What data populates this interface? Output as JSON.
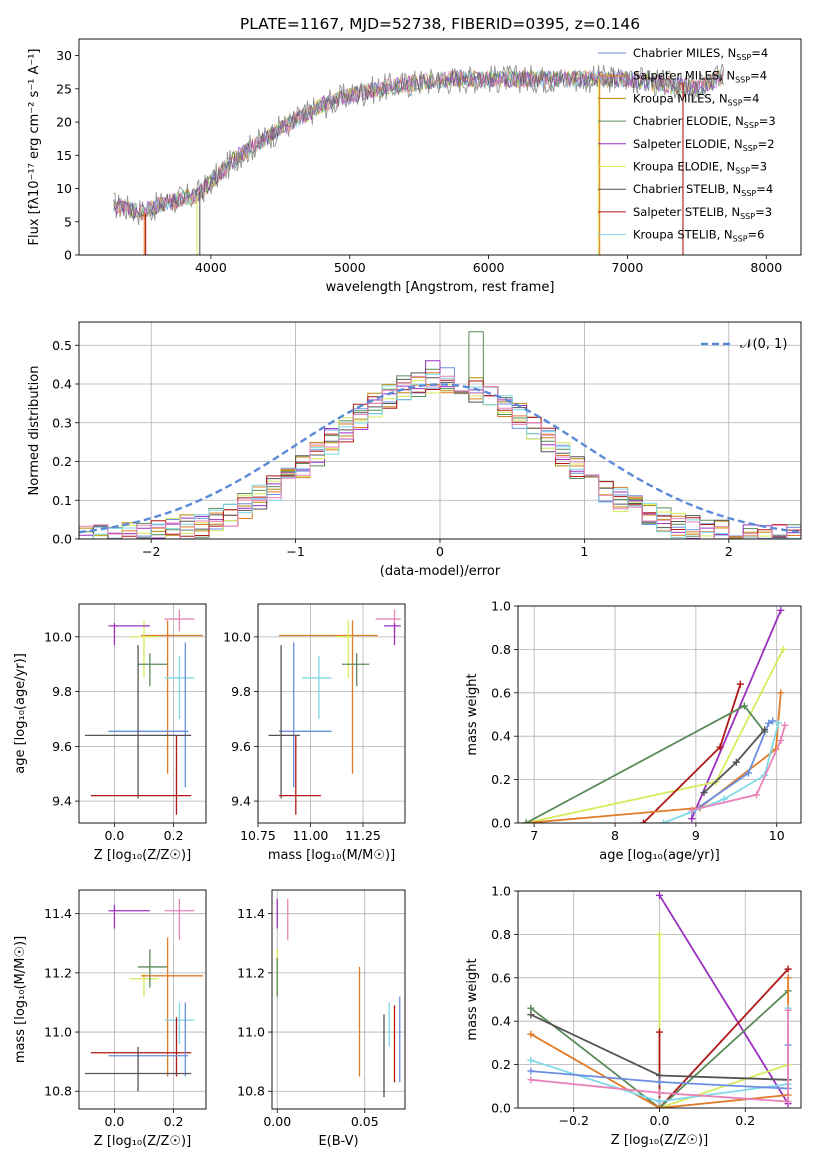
{
  "figure_title": "PLATE=1167, MJD=52738, FIBERID=0395, z=0.146",
  "colors": {
    "Chabrier MILES": "#6a8fe0",
    "Salpeter MILES": "#e07b28",
    "Kroupa MILES": "#b8860b",
    "Chabrier ELODIE": "#5a8a5a",
    "Salpeter ELODIE": "#9b30c0",
    "Kroupa ELODIE": "#d4ec5c",
    "Chabrier STELIB": "#555555",
    "Salpeter STELIB": "#b01818",
    "Kroupa STELIB": "#7fd8e8",
    "pink": "#e884b8",
    "spectrum": "#808080",
    "gaussian": "#5b8ad8"
  },
  "chart_data": [
    {
      "id": "spectrum",
      "type": "line",
      "xlabel": "wavelength [Angstrom, rest frame]",
      "ylabel": "Flux [fλ10⁻¹⁷ erg cm⁻² s⁻¹ A⁻¹]",
      "xlim": [
        3050,
        8250
      ],
      "ylim": [
        0,
        32.5
      ],
      "xticks": [
        4000,
        5000,
        6000,
        7000,
        8000
      ],
      "yticks": [
        0,
        5,
        10,
        15,
        20,
        25,
        30
      ],
      "legend_position": "right",
      "legend": [
        {
          "imf": "Chabrier",
          "lib": "MILES",
          "n": 4
        },
        {
          "imf": "Salpeter",
          "lib": "MILES",
          "n": 4
        },
        {
          "imf": "Kroupa",
          "lib": "MILES",
          "n": 4
        },
        {
          "imf": "Chabrier",
          "lib": "ELODIE",
          "n": 3
        },
        {
          "imf": "Salpeter",
          "lib": "ELODIE",
          "n": 2
        },
        {
          "imf": "Kroupa",
          "lib": "ELODIE",
          "n": 3
        },
        {
          "imf": "Chabrier",
          "lib": "STELIB",
          "n": 4
        },
        {
          "imf": "Salpeter",
          "lib": "STELIB",
          "n": 3
        },
        {
          "imf": "Kroupa",
          "lib": "STELIB",
          "n": 6
        }
      ],
      "continuum": [
        [
          3300,
          7.5
        ],
        [
          3500,
          6.5
        ],
        [
          3700,
          8
        ],
        [
          3900,
          9
        ],
        [
          4000,
          11
        ],
        [
          4200,
          15
        ],
        [
          4500,
          19
        ],
        [
          4800,
          22.5
        ],
        [
          5000,
          24
        ],
        [
          5200,
          25
        ],
        [
          5500,
          26
        ],
        [
          5800,
          26.5
        ],
        [
          6000,
          26.5
        ],
        [
          6500,
          26.5
        ],
        [
          7000,
          26.5
        ],
        [
          7500,
          25
        ],
        [
          7700,
          27
        ]
      ]
    },
    {
      "id": "residuals",
      "type": "histogram",
      "xlabel": "(data-model)/error",
      "ylabel": "Normed distribution",
      "xlim": [
        -2.5,
        2.5
      ],
      "ylim": [
        0,
        0.56
      ],
      "xticks": [
        -2,
        -1,
        0,
        1,
        2
      ],
      "yticks": [
        0.0,
        0.1,
        0.2,
        0.3,
        0.4,
        0.5
      ],
      "grid": true,
      "legend_position": "top-right",
      "gaussian_label": "𝒩(0, 1)"
    },
    {
      "id": "age-Z",
      "type": "errorbar",
      "xlabel": "Z [log₁₀(Z/Z☉)]",
      "ylabel": "age  [log₁₀(age/yr)]",
      "xlim": [
        -0.12,
        0.31
      ],
      "ylim": [
        9.32,
        10.12
      ],
      "xticks": [
        0.0,
        0.2
      ],
      "yticks": [
        9.4,
        9.6,
        9.8,
        10.0
      ],
      "grid": true,
      "points": [
        {
          "c": "pink",
          "x": 0.22,
          "y": 10.065,
          "xl": 0.17,
          "xh": 0.27,
          "yl": 10.02,
          "yh": 10.1
        },
        {
          "c": "Salpeter MILES",
          "x": 0.18,
          "y": 10.005,
          "xl": 0.09,
          "xh": 0.3,
          "yl": 9.5,
          "yh": 10.06
        },
        {
          "c": "Kroupa ELODIE",
          "x": 0.1,
          "y": 10.0,
          "xl": 0.05,
          "xh": 0.15,
          "yl": 9.85,
          "yh": 10.06
        },
        {
          "c": "Salpeter ELODIE",
          "x": 0.0,
          "y": 10.04,
          "xl": -0.02,
          "xh": 0.12,
          "yl": 9.97,
          "yh": 10.05
        },
        {
          "c": "Chabrier ELODIE",
          "x": 0.12,
          "y": 9.9,
          "xl": 0.08,
          "xh": 0.18,
          "yl": 9.82,
          "yh": 9.94
        },
        {
          "c": "Kroupa STELIB",
          "x": 0.22,
          "y": 9.85,
          "xl": 0.17,
          "xh": 0.27,
          "yl": 9.7,
          "yh": 9.93
        },
        {
          "c": "Chabrier MILES",
          "x": 0.24,
          "y": 9.655,
          "xl": -0.02,
          "xh": 0.25,
          "yl": 9.45,
          "yh": 9.98
        },
        {
          "c": "Chabrier STELIB",
          "x": 0.08,
          "y": 9.64,
          "xl": -0.1,
          "xh": 0.26,
          "yl": 9.41,
          "yh": 9.97
        },
        {
          "c": "Salpeter STELIB",
          "x": 0.21,
          "y": 9.42,
          "xl": -0.08,
          "xh": 0.26,
          "yl": 9.35,
          "yh": 9.64
        }
      ]
    },
    {
      "id": "age-mass",
      "type": "errorbar",
      "xlabel": "mass [log₁₀(M/M☉)]",
      "ylabel": "",
      "xlim": [
        10.75,
        11.45
      ],
      "ylim": [
        9.32,
        10.12
      ],
      "xticks": [
        10.75,
        11.0,
        11.25
      ],
      "yticks": [
        9.4,
        9.6,
        9.8,
        10.0
      ],
      "grid": true,
      "points": [
        {
          "c": "pink",
          "x": 11.4,
          "y": 10.065,
          "xl": 11.31,
          "xh": 11.43,
          "yl": 10.02,
          "yh": 10.1
        },
        {
          "c": "Salpeter ELODIE",
          "x": 11.4,
          "y": 10.04,
          "xl": 11.35,
          "xh": 11.43,
          "yl": 9.97,
          "yh": 10.05
        },
        {
          "c": "Salpeter MILES",
          "x": 11.2,
          "y": 10.005,
          "xl": 10.85,
          "xh": 11.32,
          "yl": 9.5,
          "yh": 10.06
        },
        {
          "c": "Kroupa ELODIE",
          "x": 11.18,
          "y": 10.0,
          "xl": 11.12,
          "xh": 11.2,
          "yl": 9.85,
          "yh": 10.06
        },
        {
          "c": "Chabrier ELODIE",
          "x": 11.22,
          "y": 9.9,
          "xl": 11.15,
          "xh": 11.28,
          "yl": 9.82,
          "yh": 9.94
        },
        {
          "c": "Kroupa STELIB",
          "x": 11.04,
          "y": 9.85,
          "xl": 10.96,
          "xh": 11.1,
          "yl": 9.7,
          "yh": 9.93
        },
        {
          "c": "Chabrier MILES",
          "x": 10.92,
          "y": 9.655,
          "xl": 10.85,
          "xh": 11.1,
          "yl": 9.45,
          "yh": 9.98
        },
        {
          "c": "Chabrier STELIB",
          "x": 10.86,
          "y": 9.64,
          "xl": 10.8,
          "xh": 10.95,
          "yl": 9.41,
          "yh": 9.97
        },
        {
          "c": "Salpeter STELIB",
          "x": 10.93,
          "y": 9.42,
          "xl": 10.85,
          "xh": 11.05,
          "yl": 9.35,
          "yh": 9.64
        }
      ]
    },
    {
      "id": "weight-age",
      "type": "line",
      "xlabel": "age  [log₁₀(age/yr)]",
      "ylabel": "mass weight",
      "xlim": [
        6.8,
        10.3
      ],
      "ylim": [
        0,
        1.0
      ],
      "xticks": [
        7,
        8,
        9,
        10
      ],
      "yticks": [
        0.0,
        0.2,
        0.4,
        0.6,
        0.8,
        1.0
      ],
      "grid": true,
      "series": [
        {
          "c": "Salpeter ELODIE",
          "points": [
            [
              8.95,
              0.02
            ],
            [
              10.05,
              0.98
            ]
          ]
        },
        {
          "c": "Kroupa ELODIE",
          "points": [
            [
              6.9,
              0.0
            ],
            [
              9.25,
              0.19
            ],
            [
              10.08,
              0.8
            ]
          ]
        },
        {
          "c": "Salpeter STELIB",
          "points": [
            [
              8.35,
              0.0
            ],
            [
              9.3,
              0.35
            ],
            [
              9.55,
              0.64
            ]
          ]
        },
        {
          "c": "Salpeter MILES",
          "points": [
            [
              6.9,
              0.0
            ],
            [
              9.05,
              0.07
            ],
            [
              9.99,
              0.34
            ],
            [
              10.05,
              0.6
            ]
          ]
        },
        {
          "c": "Chabrier ELODIE",
          "points": [
            [
              6.9,
              0.0
            ],
            [
              9.6,
              0.54
            ],
            [
              9.85,
              0.42
            ]
          ]
        },
        {
          "c": "Chabrier MILES",
          "points": [
            [
              8.95,
              0.05
            ],
            [
              9.65,
              0.23
            ],
            [
              9.9,
              0.46
            ],
            [
              9.95,
              0.47
            ]
          ]
        },
        {
          "c": "Chabrier STELIB",
          "points": [
            [
              9.1,
              0.14
            ],
            [
              9.5,
              0.28
            ],
            [
              9.85,
              0.43
            ]
          ]
        },
        {
          "c": "Kroupa STELIB",
          "points": [
            [
              8.6,
              0.0
            ],
            [
              9.35,
              0.11
            ],
            [
              9.85,
              0.22
            ],
            [
              10.02,
              0.46
            ]
          ]
        },
        {
          "c": "pink",
          "points": [
            [
              8.95,
              0.06
            ],
            [
              9.75,
              0.13
            ],
            [
              10.05,
              0.38
            ],
            [
              10.1,
              0.45
            ]
          ]
        }
      ]
    },
    {
      "id": "mass-Z",
      "type": "errorbar",
      "xlabel": "Z [log₁₀(Z/Z☉)]",
      "ylabel": "mass [log₁₀(M/M☉)]",
      "xlim": [
        -0.12,
        0.31
      ],
      "ylim": [
        10.74,
        11.48
      ],
      "xticks": [
        0.0,
        0.2
      ],
      "yticks": [
        10.8,
        11.0,
        11.2,
        11.4
      ],
      "grid": true,
      "points": [
        {
          "c": "Salpeter ELODIE",
          "x": 0.0,
          "y": 11.41,
          "xl": -0.02,
          "xh": 0.12,
          "yl": 11.35,
          "yh": 11.43
        },
        {
          "c": "pink",
          "x": 0.22,
          "y": 11.41,
          "xl": 0.17,
          "xh": 0.27,
          "yl": 11.31,
          "yh": 11.45
        },
        {
          "c": "Kroupa ELODIE",
          "x": 0.1,
          "y": 11.18,
          "xl": 0.05,
          "xh": 0.15,
          "yl": 11.12,
          "yh": 11.2
        },
        {
          "c": "Chabrier ELODIE",
          "x": 0.12,
          "y": 11.22,
          "xl": 0.08,
          "xh": 0.18,
          "yl": 11.15,
          "yh": 11.28
        },
        {
          "c": "Salpeter MILES",
          "x": 0.18,
          "y": 11.19,
          "xl": 0.09,
          "xh": 0.3,
          "yl": 10.85,
          "yh": 11.32
        },
        {
          "c": "Kroupa STELIB",
          "x": 0.22,
          "y": 11.04,
          "xl": 0.17,
          "xh": 0.27,
          "yl": 10.96,
          "yh": 11.1
        },
        {
          "c": "Salpeter STELIB",
          "x": 0.21,
          "y": 10.93,
          "xl": -0.08,
          "xh": 0.26,
          "yl": 10.85,
          "yh": 11.05
        },
        {
          "c": "Chabrier MILES",
          "x": 0.24,
          "y": 10.92,
          "xl": -0.02,
          "xh": 0.25,
          "yl": 10.85,
          "yh": 11.1
        },
        {
          "c": "Chabrier STELIB",
          "x": 0.08,
          "y": 10.86,
          "xl": -0.1,
          "xh": 0.26,
          "yl": 10.8,
          "yh": 10.95
        }
      ]
    },
    {
      "id": "mass-ebv",
      "type": "errorbar",
      "xlabel": "E(B-V)",
      "ylabel": "",
      "xlim": [
        -0.003,
        0.073
      ],
      "ylim": [
        10.74,
        11.48
      ],
      "xticks": [
        0.0,
        0.05
      ],
      "yticks": [
        10.8,
        11.0,
        11.2,
        11.4
      ],
      "grid": true,
      "points": [
        {
          "c": "Salpeter ELODIE",
          "x": 0.0,
          "y": 11.41,
          "yl": 11.35,
          "yh": 11.45
        },
        {
          "c": "pink",
          "x": 0.006,
          "y": 11.41,
          "yl": 11.31,
          "yh": 11.45
        },
        {
          "c": "Kroupa ELODIE",
          "x": 0.0,
          "y": 11.18,
          "yl": 11.12,
          "yh": 11.28
        },
        {
          "c": "Chabrier ELODIE",
          "x": 0.0,
          "y": 11.22,
          "yl": 11.12,
          "yh": 11.25
        },
        {
          "c": "Salpeter MILES",
          "x": 0.047,
          "y": 11.04,
          "yl": 10.85,
          "yh": 11.22
        },
        {
          "c": "Chabrier STELIB",
          "x": 0.061,
          "y": 10.92,
          "yl": 10.78,
          "yh": 11.06
        },
        {
          "c": "Kroupa STELIB",
          "x": 0.064,
          "y": 11.02,
          "yl": 10.95,
          "yh": 11.1
        },
        {
          "c": "Salpeter STELIB",
          "x": 0.067,
          "y": 10.95,
          "yl": 10.83,
          "yh": 11.09
        },
        {
          "c": "Chabrier MILES",
          "x": 0.07,
          "y": 10.95,
          "yl": 10.83,
          "yh": 11.12
        }
      ]
    },
    {
      "id": "weight-Z",
      "type": "line",
      "xlabel": "Z [log₁₀(Z/Z☉)]",
      "ylabel": "mass weight",
      "xlim": [
        -0.33,
        0.33
      ],
      "ylim": [
        0,
        1.0
      ],
      "xticks": [
        -0.2,
        0.0,
        0.2
      ],
      "yticks": [
        0.0,
        0.2,
        0.4,
        0.6,
        0.8,
        1.0
      ],
      "grid": true,
      "series": [
        {
          "c": "Salpeter ELODIE",
          "points": [
            [
              0.0,
              0.98
            ],
            [
              0.3,
              0.02
            ]
          ]
        },
        {
          "c": "Kroupa ELODIE",
          "points": [
            [
              0.0,
              0.8
            ],
            [
              0.0,
              0.0
            ],
            [
              0.3,
              0.2
            ]
          ]
        },
        {
          "c": "Salpeter STELIB",
          "points": [
            [
              0.0,
              0.35
            ],
            [
              0.0,
              0.0
            ],
            [
              0.3,
              0.64
            ]
          ]
        },
        {
          "c": "Chabrier ELODIE",
          "points": [
            [
              -0.3,
              0.46
            ],
            [
              0.0,
              0.0
            ],
            [
              0.3,
              0.54
            ]
          ]
        },
        {
          "c": "Chabrier STELIB",
          "points": [
            [
              -0.3,
              0.43
            ],
            [
              0.0,
              0.15
            ],
            [
              0.3,
              0.13
            ]
          ]
        },
        {
          "c": "Salpeter MILES",
          "points": [
            [
              -0.3,
              0.34
            ],
            [
              0.0,
              0.0
            ],
            [
              0.3,
              0.06
            ],
            [
              0.3,
              0.6
            ]
          ]
        },
        {
          "c": "Kroupa STELIB",
          "points": [
            [
              -0.3,
              0.22
            ],
            [
              0.0,
              0.03
            ],
            [
              0.3,
              0.11
            ],
            [
              0.3,
              0.46
            ]
          ]
        },
        {
          "c": "Chabrier MILES",
          "points": [
            [
              -0.3,
              0.17
            ],
            [
              0.0,
              0.12
            ],
            [
              0.3,
              0.09
            ],
            [
              0.3,
              0.29
            ]
          ]
        },
        {
          "c": "pink",
          "points": [
            [
              -0.3,
              0.13
            ],
            [
              0.0,
              0.07
            ],
            [
              0.3,
              0.03
            ],
            [
              0.3,
              0.45
            ]
          ]
        }
      ]
    }
  ]
}
